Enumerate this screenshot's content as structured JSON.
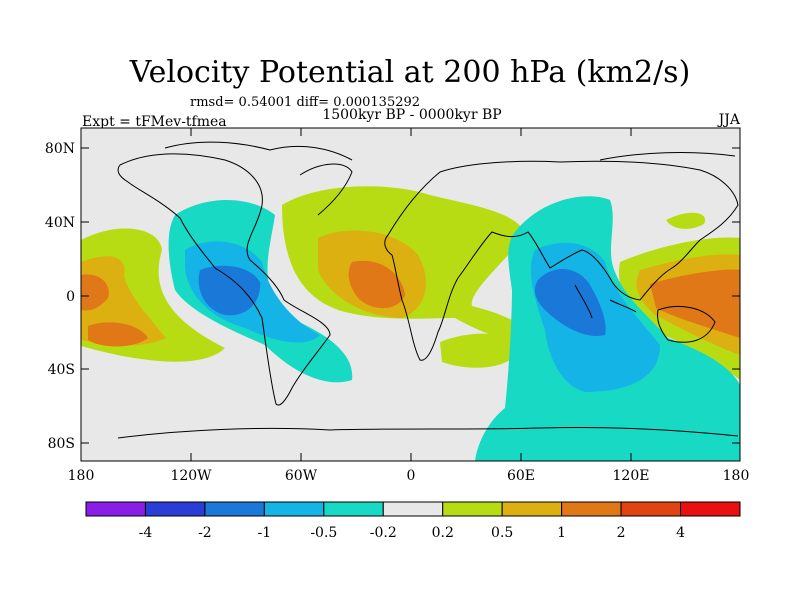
{
  "title": "Velocity Potential at 200 hPa (km2/s)",
  "stats": "rmsd= 0.54001 diff= 0.000135292",
  "experiment": "Expt = tFMev-tfmea",
  "period": "1500kyr BP - 0000kyr BP",
  "season": "JJA",
  "lat_labels": [
    "80N",
    "40N",
    "0",
    "40S",
    "80S"
  ],
  "lon_labels": [
    "180",
    "120W",
    "60W",
    "0",
    "60E",
    "120E",
    "180"
  ],
  "colorbar": {
    "labels": [
      "-4",
      "-2",
      "-1",
      "-0.5",
      "-0.2",
      "0.2",
      "0.5",
      "1",
      "2",
      "4"
    ],
    "colors": [
      "#8a1ee6",
      "#2c3cd6",
      "#1a78d8",
      "#14b4e6",
      "#17d9c4",
      "#e8e8e8",
      "#b8dc14",
      "#dcb010",
      "#e07818",
      "#e04410",
      "#e81010"
    ]
  },
  "colors": {
    "ocean_bg": "#e8e8e8",
    "coast": "#000000"
  }
}
